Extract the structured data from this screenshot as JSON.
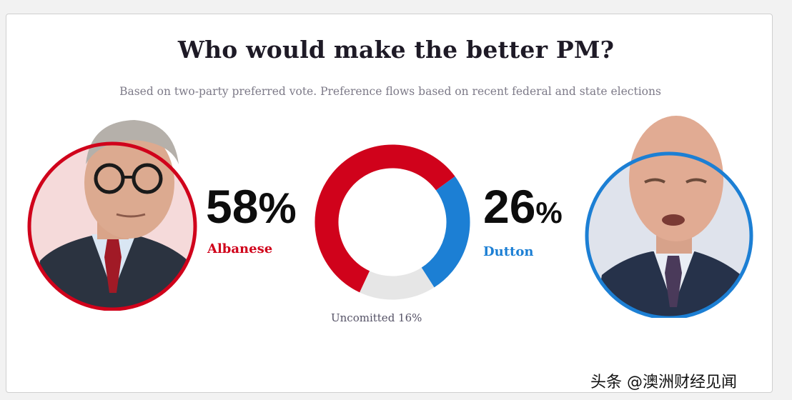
{
  "title": "Who would make the better PM?",
  "subtitle": "Based on two-party preferred vote. Preference flows based on recent federal and state elections",
  "colors": {
    "albanese": "#d0021b",
    "dutton": "#1c7fd4",
    "uncommitted": "#e6e6e6"
  },
  "albanese": {
    "name": "Albanese",
    "percent": "58",
    "sign": "%",
    "portrait": "albanese-portrait-icon"
  },
  "dutton": {
    "name": "Dutton",
    "percent": "26",
    "sign": "%",
    "portrait": "dutton-portrait-icon"
  },
  "uncommitted_label": "Uncomitted 16%",
  "watermark": "头条 @澳洲财经见闻",
  "chart_data": {
    "type": "pie",
    "donut": true,
    "categories": [
      "Albanese",
      "Dutton",
      "Uncomitted"
    ],
    "values": [
      58,
      26,
      16
    ],
    "colors": [
      "#d0021b",
      "#1c7fd4",
      "#e6e6e6"
    ],
    "title": "Who would make the better PM?",
    "subtitle": "Based on two-party preferred vote. Preference flows based on recent federal and state elections"
  }
}
